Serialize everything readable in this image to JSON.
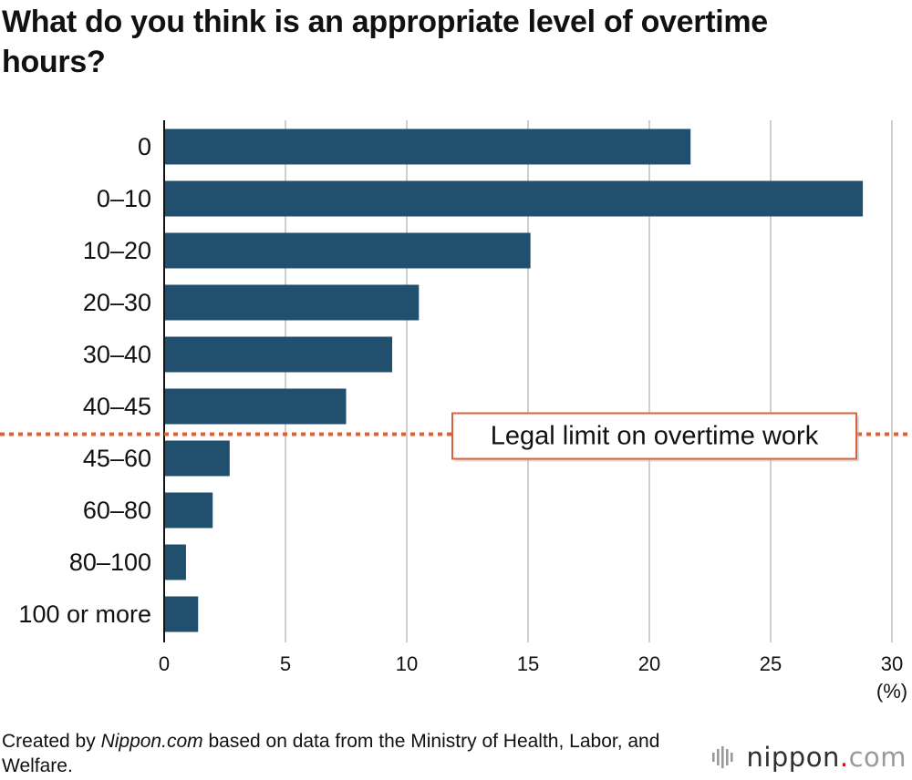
{
  "chart_data": {
    "type": "bar",
    "orientation": "horizontal",
    "title": "What do you think is an appropriate level of overtime hours?",
    "categories": [
      "0",
      "0–10",
      "10–20",
      "20–30",
      "30–40",
      "40–45",
      "45–60",
      "60–80",
      "80–100",
      "100 or more"
    ],
    "values": [
      21.7,
      28.8,
      15.1,
      10.5,
      9.4,
      7.5,
      2.7,
      2.0,
      0.9,
      1.4
    ],
    "xlim": [
      0,
      30
    ],
    "x_ticks": [
      0,
      5,
      10,
      15,
      20,
      25,
      30
    ],
    "unit_label": "(%)",
    "grid": "vertical",
    "bar_color": "#21506e",
    "reference_line": {
      "label": "Legal limit on overtime work",
      "position_between": [
        "40–45",
        "45–60"
      ],
      "color": "#d9623a",
      "style": "dotted"
    }
  },
  "footer": {
    "prefix": "Created by ",
    "source_brand": "Nippon.com",
    "suffix": " based on data from the Ministry of Health, Labor, and Welfare."
  },
  "logo": {
    "name": "nippon",
    "dot": ".",
    "tld": "com",
    "icon": "sound-wave-icon"
  }
}
